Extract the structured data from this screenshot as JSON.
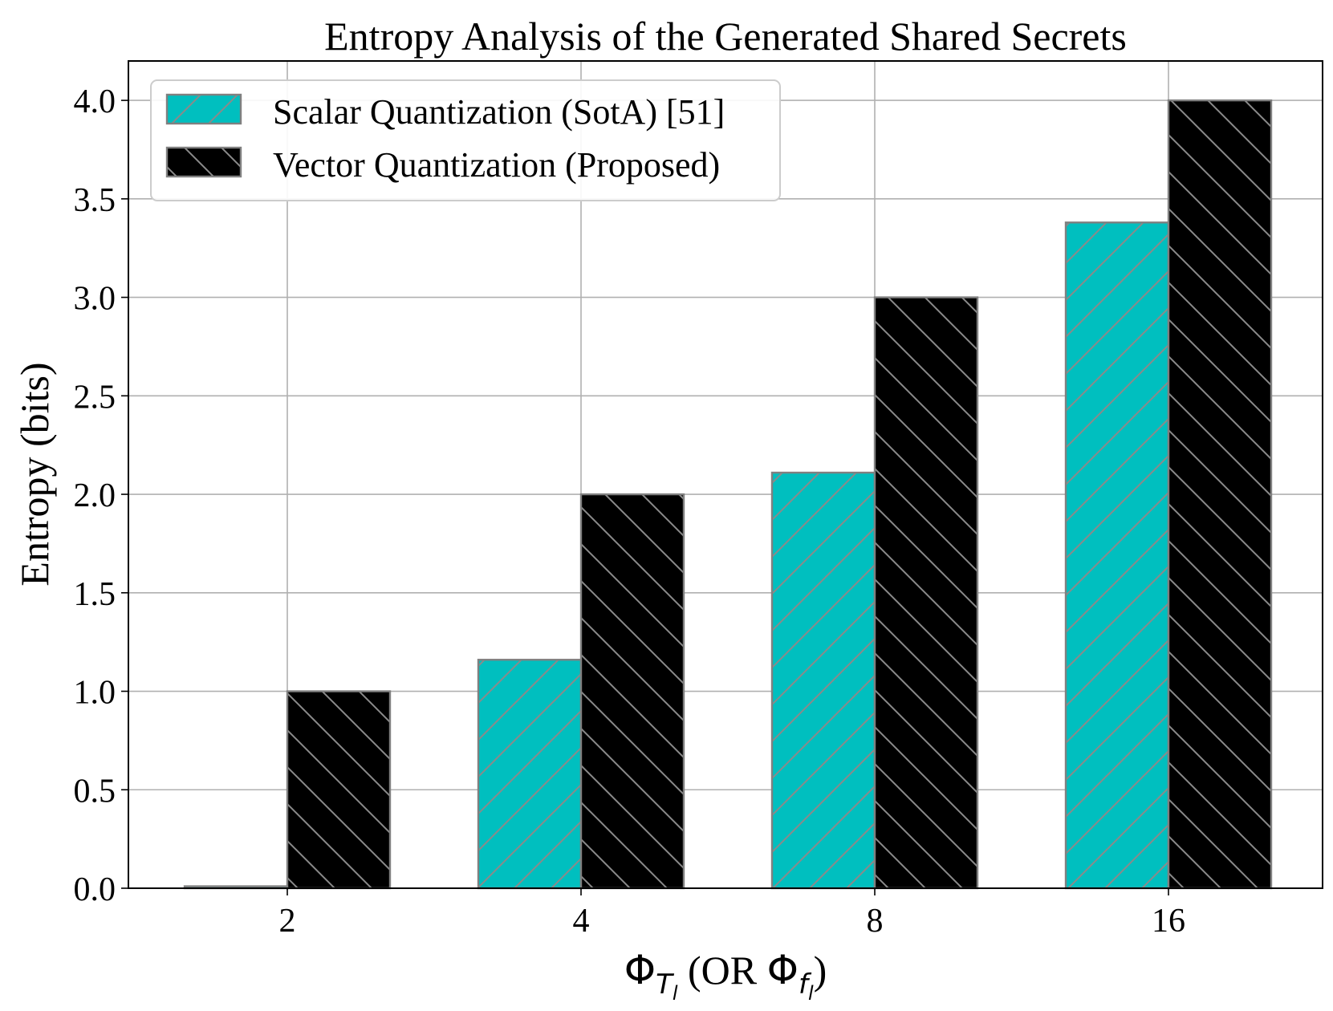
{
  "chart_data": {
    "type": "bar",
    "title": "Entropy Analysis of the Generated Shared Secrets",
    "xlabel_parts": {
      "main": "Φ",
      "sub_t": "T",
      "sub_l": "l",
      "mid": " (OR ",
      "sub_f": "f",
      "end": ")"
    },
    "ylabel": "Entropy (bits)",
    "categories": [
      "2",
      "4",
      "8",
      "16"
    ],
    "ylim": [
      0,
      4.2
    ],
    "yticks": [
      0.0,
      0.5,
      1.0,
      1.5,
      2.0,
      2.5,
      3.0,
      3.5,
      4.0
    ],
    "ytick_labels": [
      "0.0",
      "0.5",
      "1.0",
      "1.5",
      "2.0",
      "2.5",
      "3.0",
      "3.5",
      "4.0"
    ],
    "grid": true,
    "legend_position": "top-left",
    "series": [
      {
        "name": "Scalar Quantization (SotA) [51]",
        "values": [
          0.01,
          1.16,
          2.11,
          3.38
        ],
        "color": "#00bfbf",
        "hatch": "forward-slash"
      },
      {
        "name": "Vector Quantization (Proposed)",
        "values": [
          1.0,
          2.0,
          3.0,
          4.0
        ],
        "color": "#000000",
        "hatch": "back-slash"
      }
    ]
  }
}
